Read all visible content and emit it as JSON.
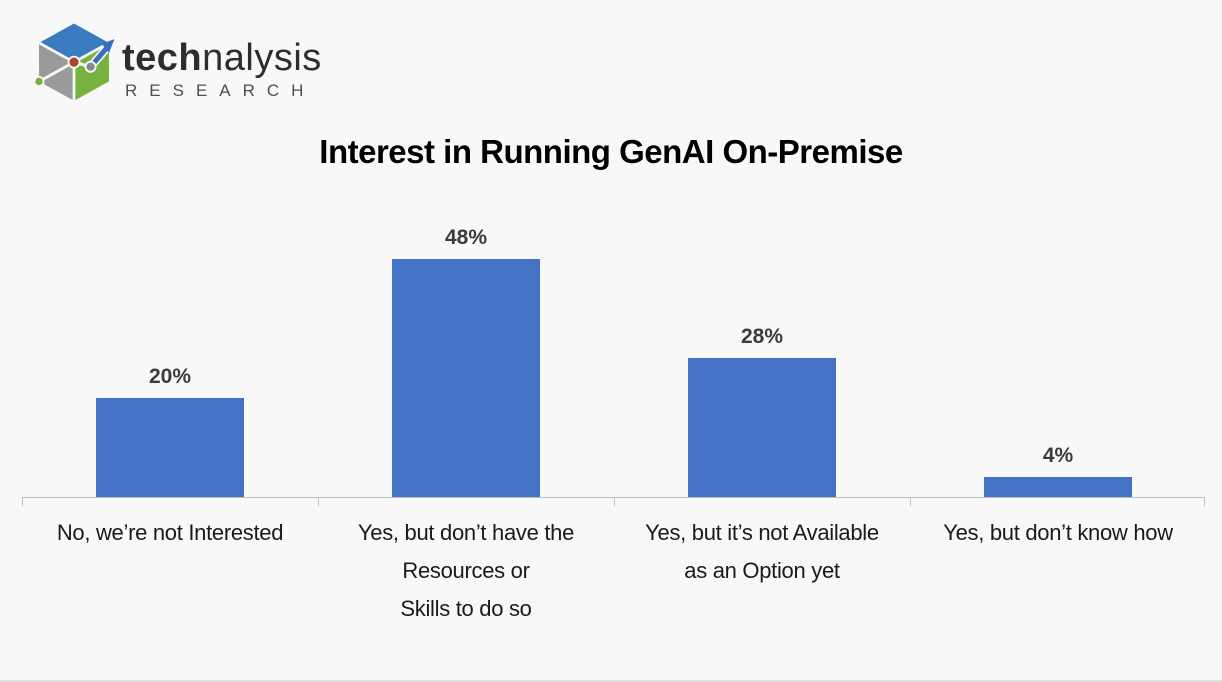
{
  "logo": {
    "brand_bold": "tech",
    "brand_light": "nalysis",
    "subtitle": "RESEARCH"
  },
  "chart_data": {
    "type": "bar",
    "title": "Interest in Running GenAI On-Premise",
    "categories": [
      "No, we’re not Interested",
      "Yes, but don’t have the Resources or Skills to do so",
      "Yes, but it’s not Available as an Option yet",
      "Yes, but don’t know how"
    ],
    "category_lines": [
      [
        "No, we’re not Interested"
      ],
      [
        "Yes, but don’t have the",
        "Resources or",
        "Skills to do so"
      ],
      [
        "Yes, but it’s not Available",
        "as an Option yet"
      ],
      [
        "Yes, but don’t know how"
      ]
    ],
    "values": [
      20,
      48,
      28,
      4
    ],
    "value_labels": [
      "20%",
      "48%",
      "28%",
      "4%"
    ],
    "xlabel": "",
    "ylabel": "",
    "ylim": [
      0,
      50
    ],
    "grid": false,
    "legend": false,
    "bar_color": "#4472C4",
    "axis_color": "#BEBEBE",
    "title_color": "#000000",
    "value_label_color": "#3B3B3B",
    "category_label_color": "#1A1A1A",
    "background_color": "#F8F8F8"
  }
}
